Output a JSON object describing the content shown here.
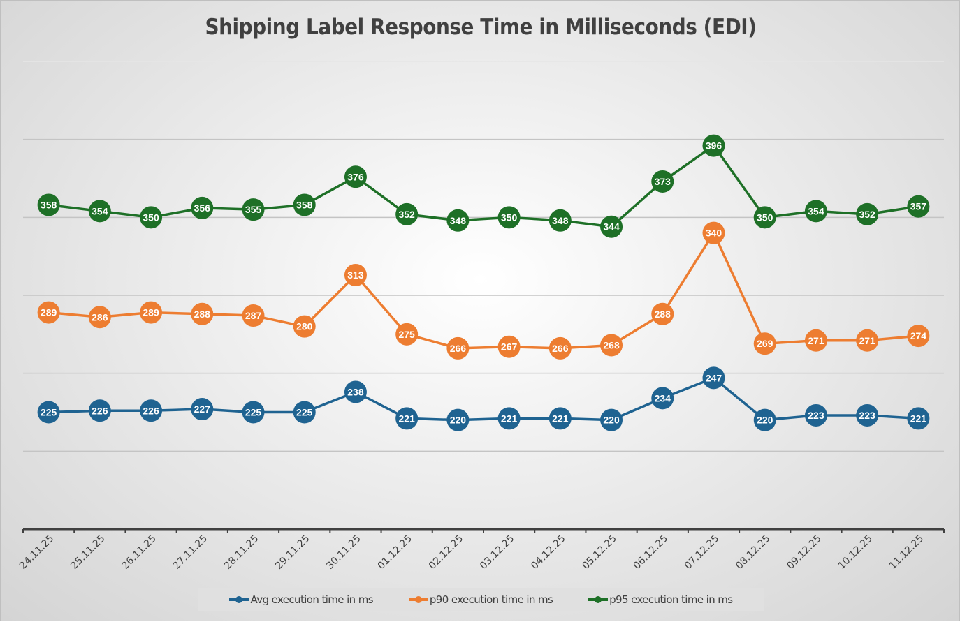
{
  "chart_data": {
    "type": "line",
    "title": "Shipping Label Response Time in Milliseconds (EDI)",
    "xlabel": "",
    "ylabel": "",
    "ylim": [
      150,
      450
    ],
    "grid": true,
    "y_gridlines": [
      200,
      250,
      300,
      350,
      400,
      450
    ],
    "legend_position": "bottom",
    "categories": [
      "24.11.25",
      "25.11.25",
      "26.11.25",
      "27.11.25",
      "28.11.25",
      "29.11.25",
      "30.11.25",
      "01.12.25",
      "02.12.25",
      "03.12.25",
      "04.12.25",
      "05.12.25",
      "06.12.25",
      "07.12.25",
      "08.12.25",
      "09.12.25",
      "10.12.25",
      "11.12.25"
    ],
    "series": [
      {
        "name": "Avg execution time in ms",
        "color": "#1f6391",
        "values": [
          225,
          226,
          226,
          227,
          225,
          225,
          238,
          221,
          220,
          221,
          221,
          220,
          234,
          247,
          220,
          223,
          223,
          221
        ]
      },
      {
        "name": "p90 execution time in ms",
        "color": "#ed7d31",
        "values": [
          289,
          286,
          289,
          288,
          287,
          280,
          313,
          275,
          266,
          267,
          266,
          268,
          288,
          340,
          269,
          271,
          271,
          274
        ]
      },
      {
        "name": "p95 execution time in ms",
        "color": "#1e7027",
        "values": [
          358,
          354,
          350,
          356,
          355,
          358,
          376,
          352,
          348,
          350,
          348,
          344,
          373,
          396,
          350,
          354,
          352,
          357
        ]
      }
    ]
  }
}
